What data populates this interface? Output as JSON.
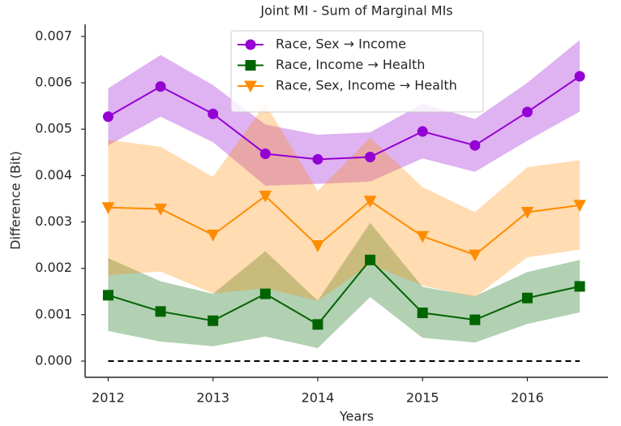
{
  "chart_data": {
    "type": "line",
    "title": "Joint MI - Sum of Marginal MIs",
    "xlabel": "Years",
    "ylabel": "Difference (Bit)",
    "x": [
      2012,
      2012.5,
      2013,
      2013.5,
      2014,
      2014.5,
      2015,
      2015.5,
      2016,
      2016.5
    ],
    "series": [
      {
        "name": "Race, Sex → Income",
        "color": "#9400d3",
        "marker": "circle",
        "values": [
          0.00527,
          0.00592,
          0.00533,
          0.00447,
          0.00435,
          0.0044,
          0.00495,
          0.00465,
          0.00537,
          0.00614
        ],
        "upper": [
          0.00588,
          0.0066,
          0.00595,
          0.0051,
          0.00488,
          0.00493,
          0.00555,
          0.00522,
          0.006,
          0.00692
        ],
        "lower": [
          0.00465,
          0.00527,
          0.00472,
          0.00378,
          0.00382,
          0.00387,
          0.00437,
          0.00408,
          0.00475,
          0.00538
        ]
      },
      {
        "name": "Race, Income → Health",
        "color": "#006400",
        "marker": "square",
        "values": [
          0.00142,
          0.00107,
          0.00087,
          0.00145,
          0.00079,
          0.00218,
          0.00104,
          0.00089,
          0.00136,
          0.00161
        ],
        "upper": [
          0.00222,
          0.00172,
          0.00145,
          0.00237,
          0.0013,
          0.00298,
          0.0016,
          0.0014,
          0.00192,
          0.00218
        ],
        "lower": [
          0.00065,
          0.00042,
          0.00032,
          0.00053,
          0.00028,
          0.00138,
          0.0005,
          0.0004,
          0.0008,
          0.00105
        ]
      },
      {
        "name": "Race, Sex, Income → Health",
        "color": "#ff8c00",
        "marker": "triangle-down",
        "values": [
          0.00331,
          0.00328,
          0.00272,
          0.00356,
          0.00249,
          0.00345,
          0.00269,
          0.00229,
          0.00321,
          0.00336
        ],
        "upper": [
          0.00477,
          0.00462,
          0.00397,
          0.00555,
          0.00367,
          0.00482,
          0.00375,
          0.00321,
          0.00418,
          0.00433
        ],
        "lower": [
          0.00185,
          0.00193,
          0.00146,
          0.00157,
          0.0013,
          0.00208,
          0.00163,
          0.00138,
          0.00224,
          0.0024
        ]
      }
    ],
    "reference_line": {
      "y": 0,
      "style": "dashed",
      "color": "#000000"
    },
    "xlim": [
      2011.78,
      2016.77
    ],
    "ylim": [
      -0.00035,
      0.00726
    ],
    "xticks": [
      2012,
      2013,
      2014,
      2015,
      2016
    ],
    "yticks": [
      {
        "value": 0,
        "label": "0.000"
      },
      {
        "value": 0.001,
        "label": "0.001"
      },
      {
        "value": 0.002,
        "label": "0.002"
      },
      {
        "value": 0.003,
        "label": "0.003"
      },
      {
        "value": 0.004,
        "label": "0.004"
      },
      {
        "value": 0.005,
        "label": "0.005"
      },
      {
        "value": 0.006,
        "label": "0.006"
      },
      {
        "value": 0.007,
        "label": "0.007"
      }
    ],
    "band_opacity": 0.3,
    "legend": "upper center",
    "grid": false
  }
}
